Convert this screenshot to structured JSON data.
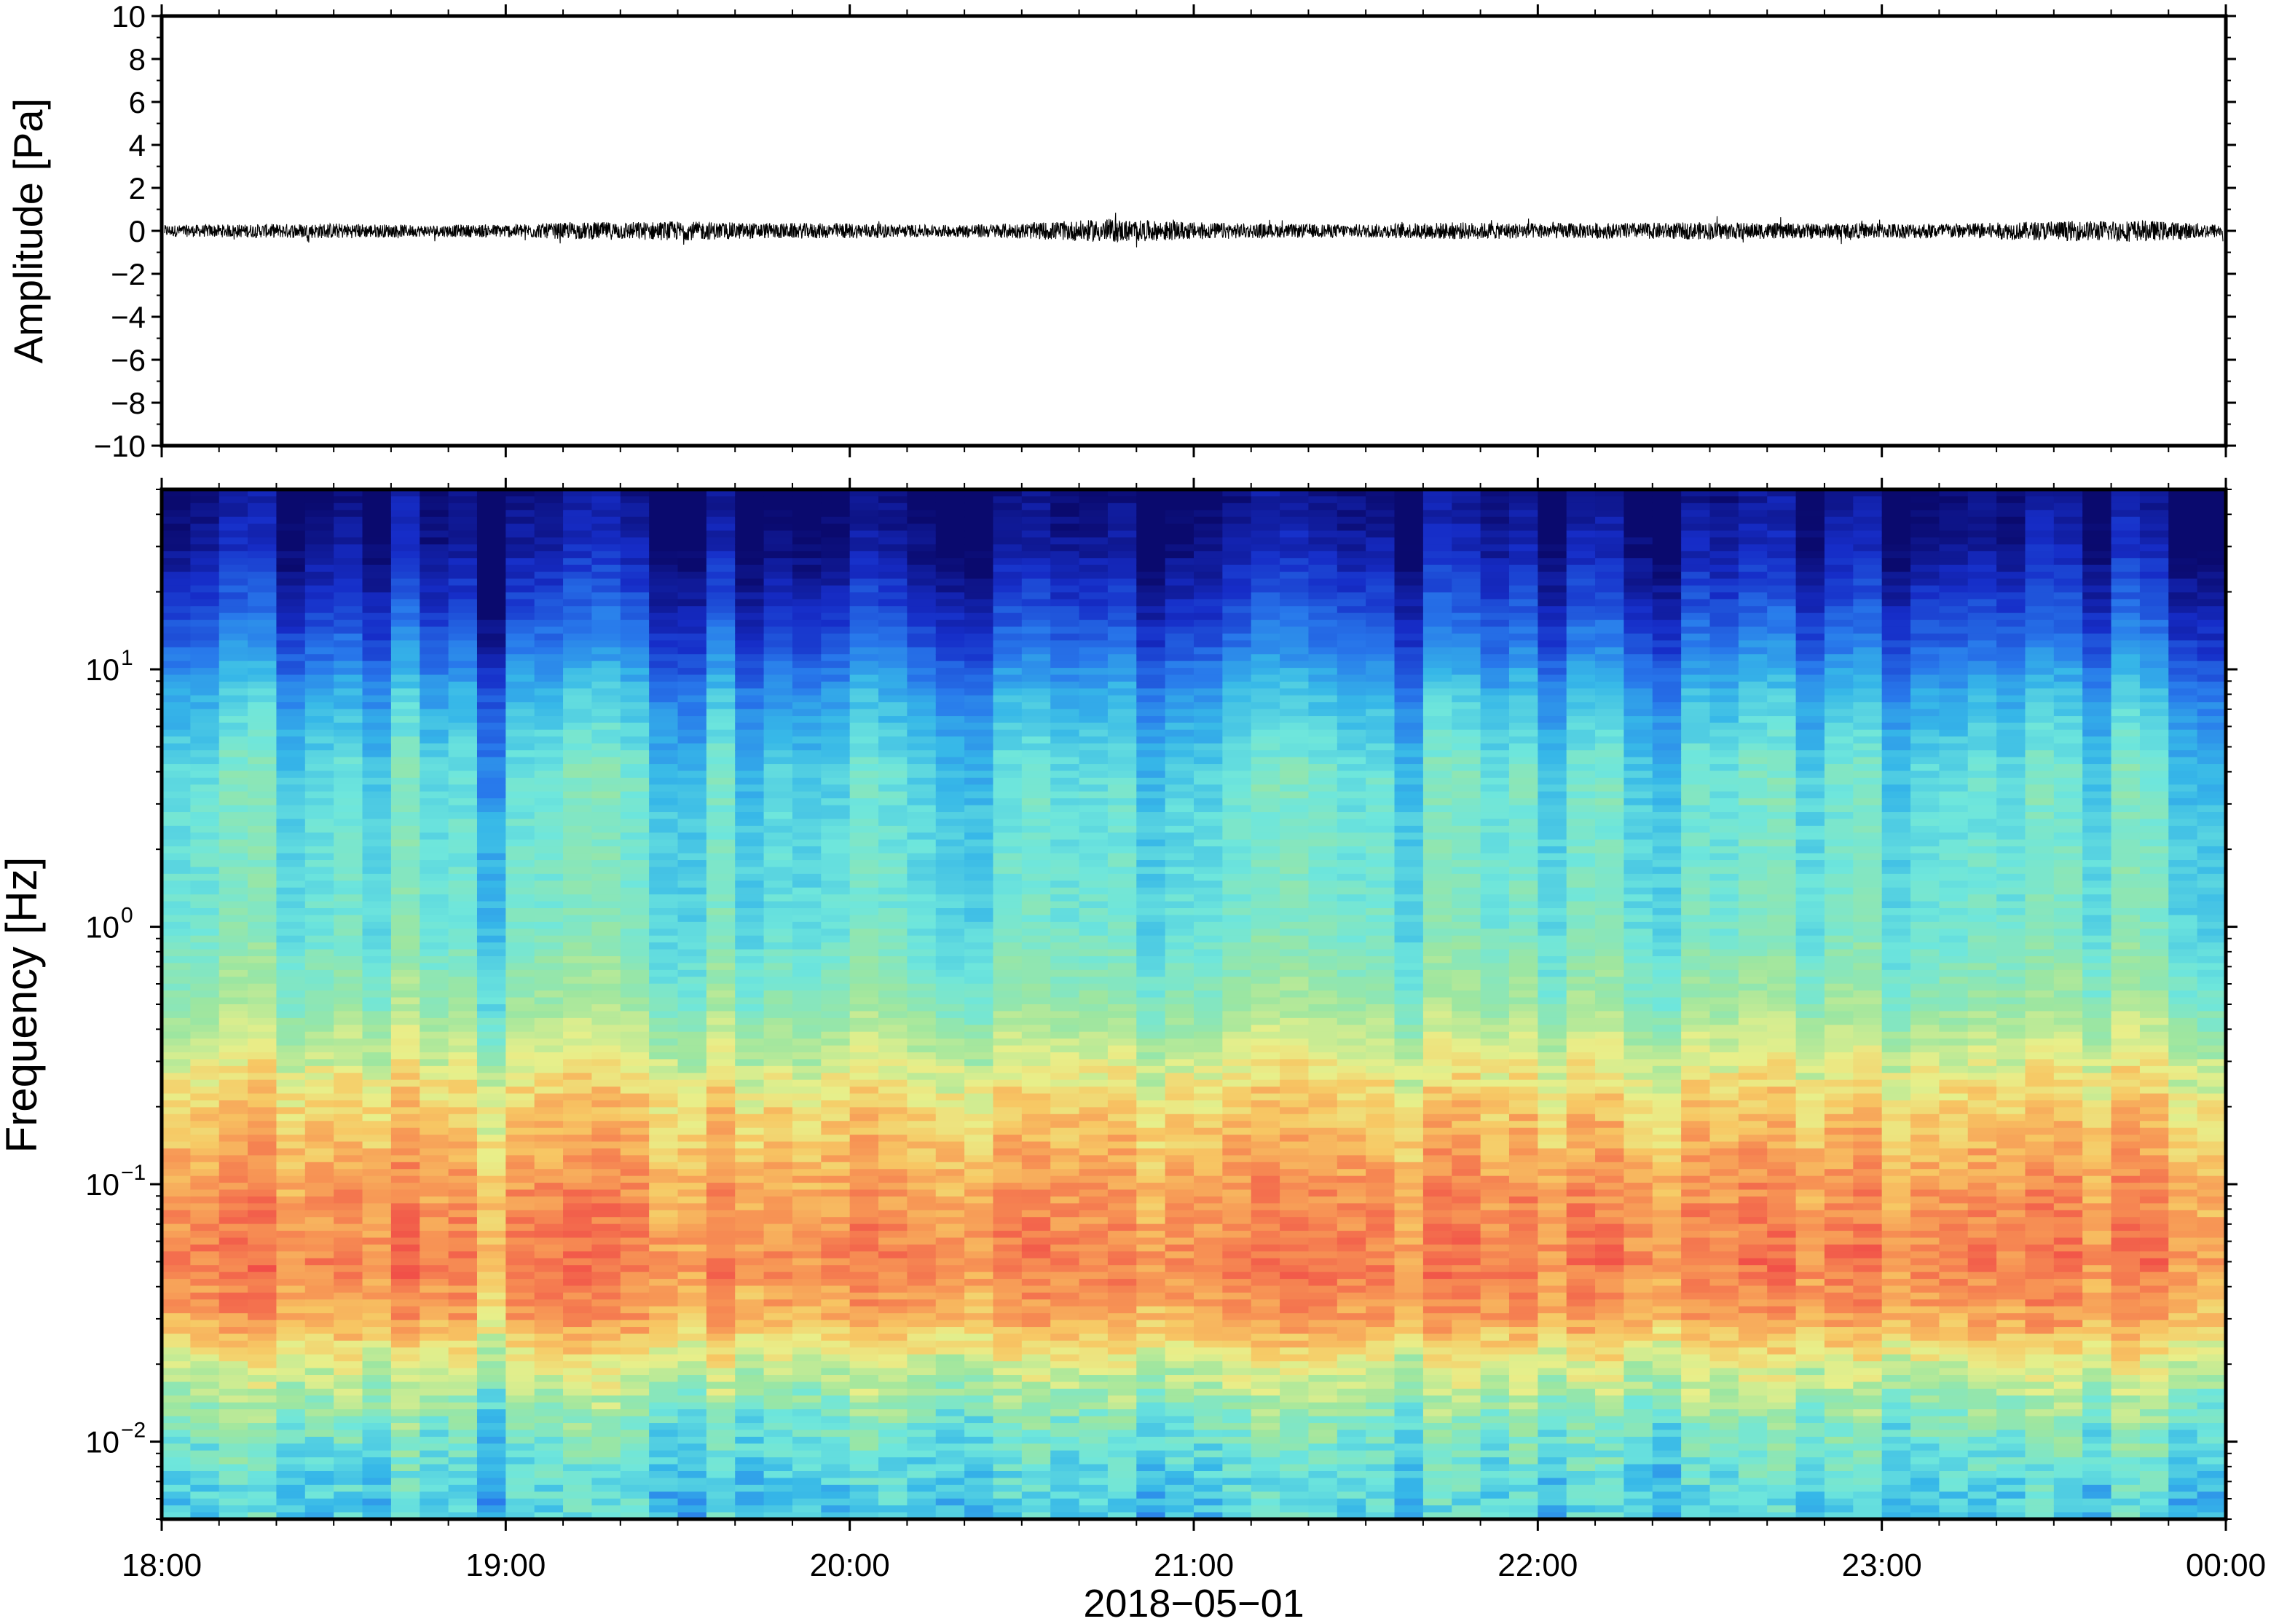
{
  "chart_data": [
    {
      "type": "line",
      "panel": "waveform",
      "ylabel": "Amplitude [Pa]",
      "ylim": [
        -10,
        10
      ],
      "yticks": [
        10,
        8,
        6,
        4,
        2,
        0,
        -2,
        -4,
        -6,
        -8,
        -10
      ],
      "ytick_labels": [
        "10",
        "8",
        "6",
        "4",
        "2",
        "0",
        "−2",
        "−4",
        "−6",
        "−8",
        "−10"
      ],
      "xlim": [
        "2018-05-01 18:00",
        "2018-05-02 00:00"
      ],
      "grid": false,
      "series": [
        {
          "description_values": "approximate peak-to-peak envelope per 15 min (Pa)",
          "x": [
            "18:00",
            "18:15",
            "18:30",
            "18:45",
            "19:00",
            "19:15",
            "19:30",
            "19:45",
            "20:00",
            "20:15",
            "20:30",
            "20:45",
            "21:00",
            "21:15",
            "21:30",
            "21:45",
            "22:00",
            "22:15",
            "22:30",
            "22:45",
            "23:00",
            "23:15",
            "23:30",
            "23:45",
            "00:00"
          ],
          "values": [
            0.6,
            0.7,
            0.8,
            0.6,
            0.7,
            0.9,
            1.0,
            0.8,
            0.8,
            0.6,
            0.8,
            1.2,
            0.9,
            0.7,
            0.7,
            0.9,
            0.8,
            0.8,
            0.9,
            0.8,
            0.8,
            0.8,
            1.0,
            1.1,
            0.7
          ]
        }
      ]
    },
    {
      "type": "heatmap",
      "panel": "spectrogram",
      "ylabel": "Frequency [Hz]",
      "yscale": "log",
      "ylim": [
        0.005,
        50
      ],
      "yticks": [
        {
          "base": "10",
          "exp": "1",
          "value": 10
        },
        {
          "base": "10",
          "exp": "0",
          "value": 1
        },
        {
          "base": "10",
          "exp": "−1",
          "value": 0.1
        },
        {
          "base": "10",
          "exp": "−2",
          "value": 0.01
        }
      ],
      "xlabel": "2018−05−01",
      "xticks": [
        "18:00",
        "19:00",
        "20:00",
        "21:00",
        "22:00",
        "23:00",
        "00:00"
      ],
      "xlim": [
        "2018-05-01 18:00",
        "2018-05-02 00:00"
      ],
      "colormap": "jet-like (dark blue low power, red high power)",
      "colors": {
        "dark_blue": "#0a0a6e",
        "blue": "#1d3cd8",
        "light_blue": "#36b7e8",
        "cyan": "#6ee6dc",
        "green": "#9de6a0",
        "yellow": "#e8ef8a",
        "orange": "#f7a955",
        "red": "#f0504a"
      },
      "band_profile": [
        {
          "freq_hz": 50,
          "level": 0.0
        },
        {
          "freq_hz": 30,
          "level": 0.05
        },
        {
          "freq_hz": 20,
          "level": 0.12
        },
        {
          "freq_hz": 12,
          "level": 0.22
        },
        {
          "freq_hz": 8,
          "level": 0.32
        },
        {
          "freq_hz": 4,
          "level": 0.42
        },
        {
          "freq_hz": 1,
          "level": 0.45
        },
        {
          "freq_hz": 0.5,
          "level": 0.52
        },
        {
          "freq_hz": 0.3,
          "level": 0.62
        },
        {
          "freq_hz": 0.2,
          "level": 0.72
        },
        {
          "freq_hz": 0.1,
          "level": 0.82
        },
        {
          "freq_hz": 0.05,
          "level": 0.88
        },
        {
          "freq_hz": 0.03,
          "level": 0.8
        },
        {
          "freq_hz": 0.02,
          "level": 0.62
        },
        {
          "freq_hz": 0.012,
          "level": 0.48
        },
        {
          "freq_hz": 0.007,
          "level": 0.4
        },
        {
          "freq_hz": 0.005,
          "level": 0.38
        }
      ],
      "grid": false
    }
  ]
}
